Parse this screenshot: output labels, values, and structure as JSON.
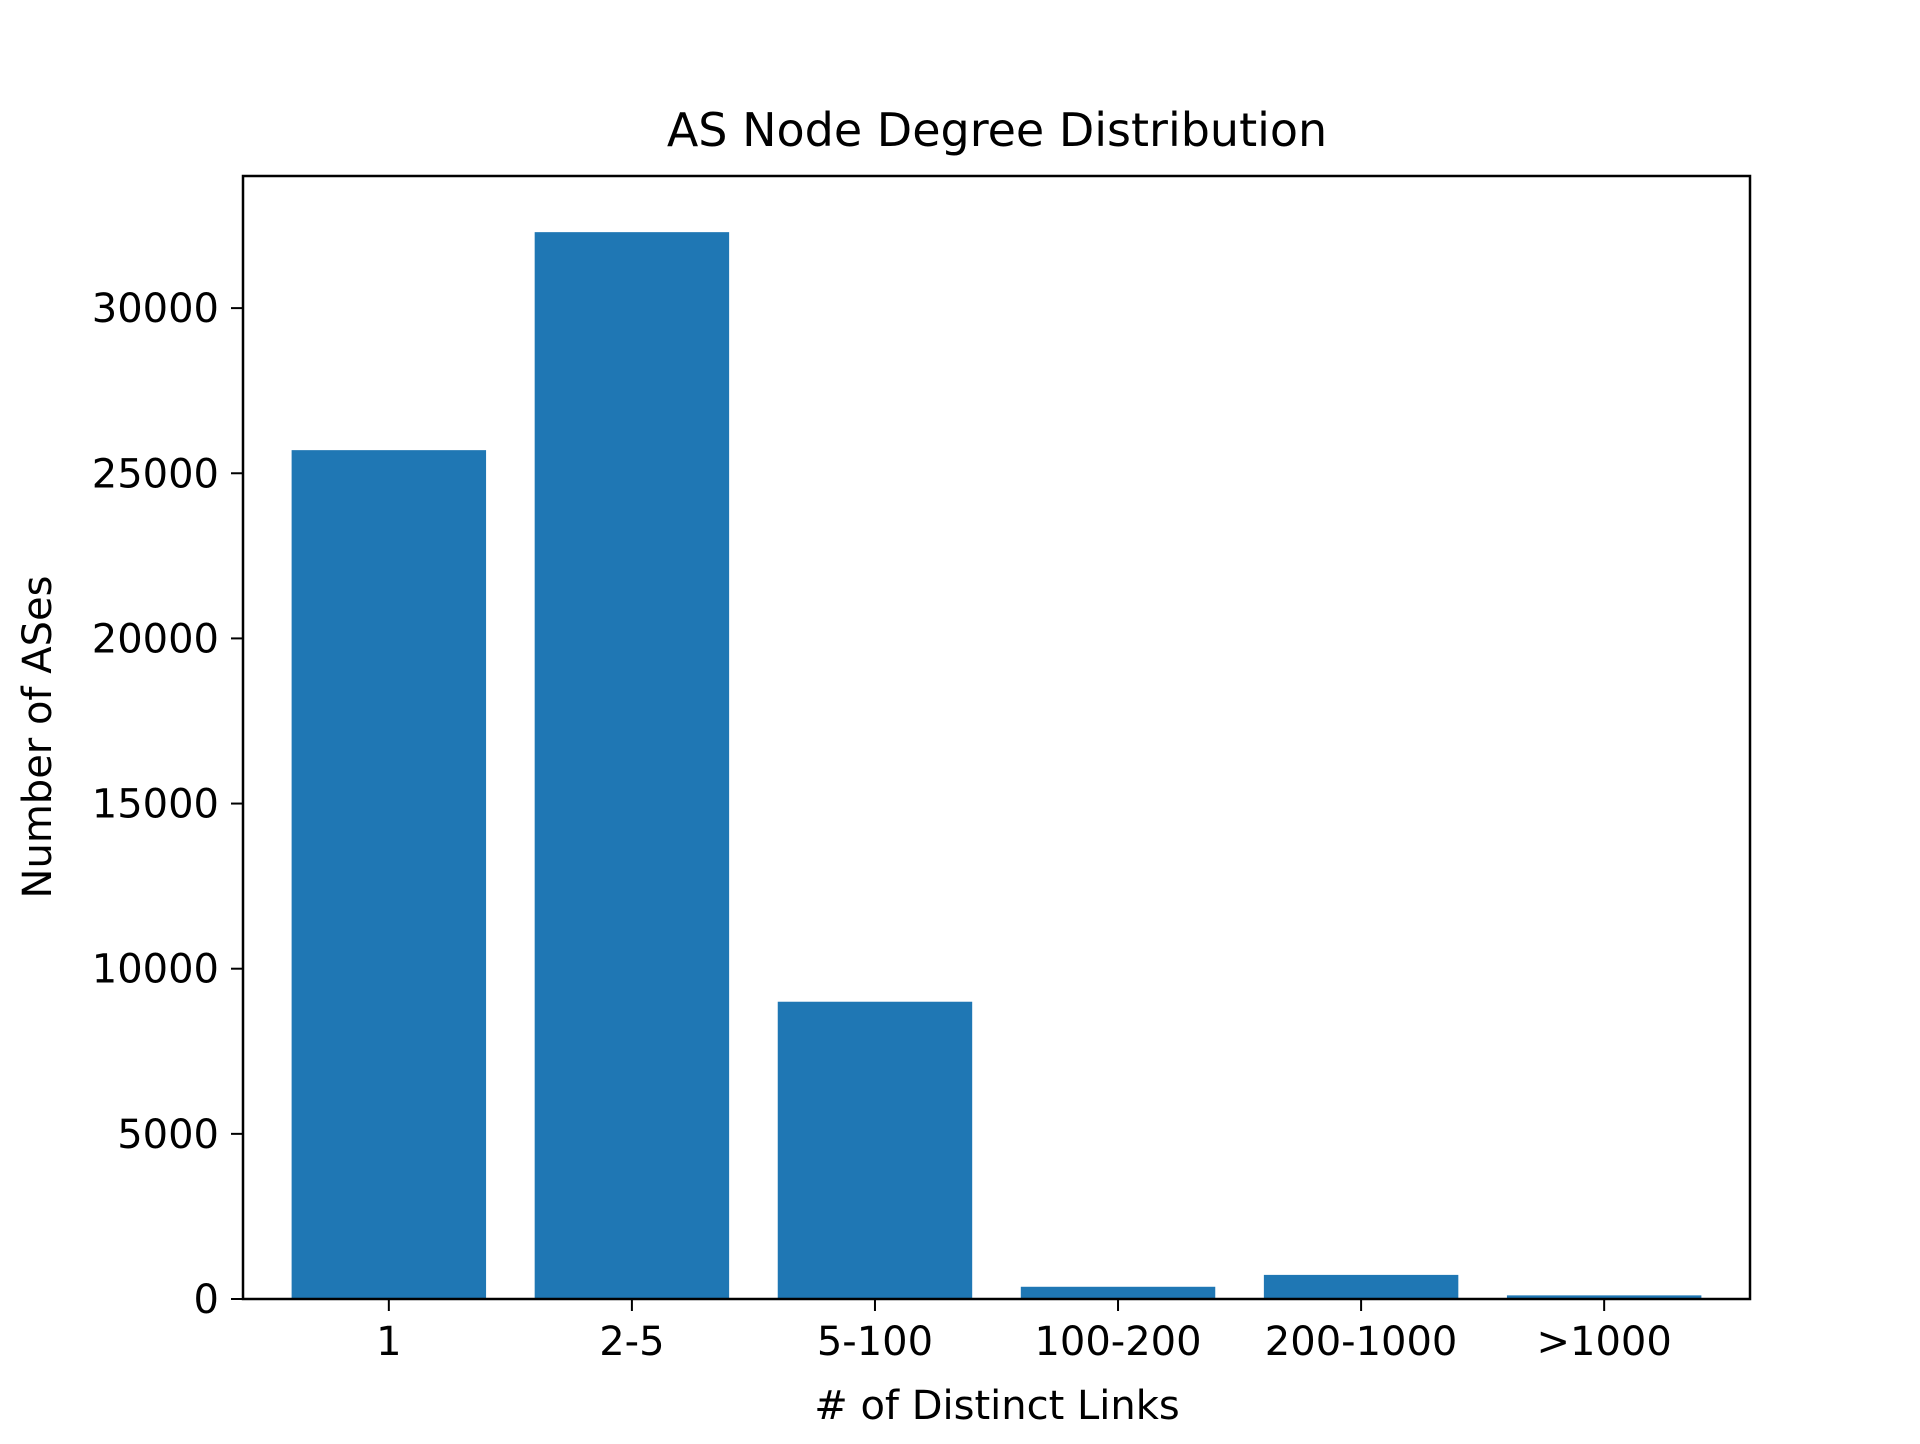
{
  "chart_data": {
    "type": "bar",
    "title": "AS Node Degree Distribution",
    "xlabel": "# of Distinct Links",
    "ylabel": "Number of ASes",
    "categories": [
      "1",
      "2-5",
      "5-100",
      "100-200",
      "200-1000",
      ">1000"
    ],
    "values": [
      25700,
      32300,
      9000,
      370,
      730,
      110
    ],
    "ylim": [
      0,
      34000
    ],
    "yticks": [
      0,
      5000,
      10000,
      15000,
      20000,
      25000,
      30000
    ],
    "ytick_labels": [
      "0",
      "5000",
      "10000",
      "15000",
      "20000",
      "25000",
      "30000"
    ],
    "bar_color": "#1f77b4",
    "grid": false,
    "legend": false
  }
}
